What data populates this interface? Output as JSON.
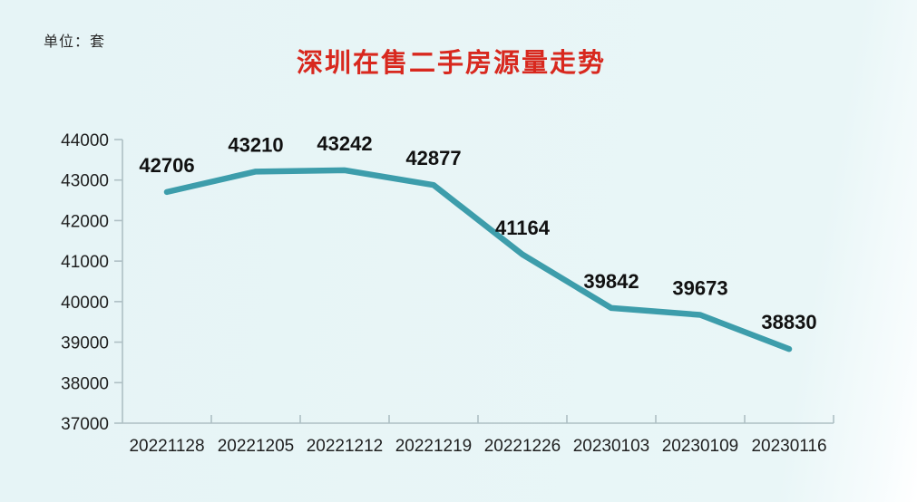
{
  "unit_label": "单位：套",
  "title": "深圳在售二手房源量走势",
  "colors": {
    "title": "#d8281e",
    "line": "#3d9dab",
    "axis": "#aebfc4",
    "tick_text": "#1f1f1f",
    "data_label_text": "#111111",
    "background": "#e9f6f7"
  },
  "chart_data": {
    "type": "line",
    "title": "深圳在售二手房源量走势",
    "unit": "套",
    "categories": [
      "20221128",
      "20221205",
      "20221212",
      "20221219",
      "20221226",
      "20230103",
      "20230109",
      "20230116"
    ],
    "values": [
      42706,
      43210,
      43242,
      42877,
      41164,
      39842,
      39673,
      38830
    ],
    "xlabel": "",
    "ylabel": "",
    "ylim": [
      37000,
      44000
    ],
    "ytick_interval": 1000,
    "yticks": [
      37000,
      38000,
      39000,
      40000,
      41000,
      42000,
      43000,
      44000
    ],
    "grid": false,
    "legend": "none",
    "data_labels_visible": true
  }
}
